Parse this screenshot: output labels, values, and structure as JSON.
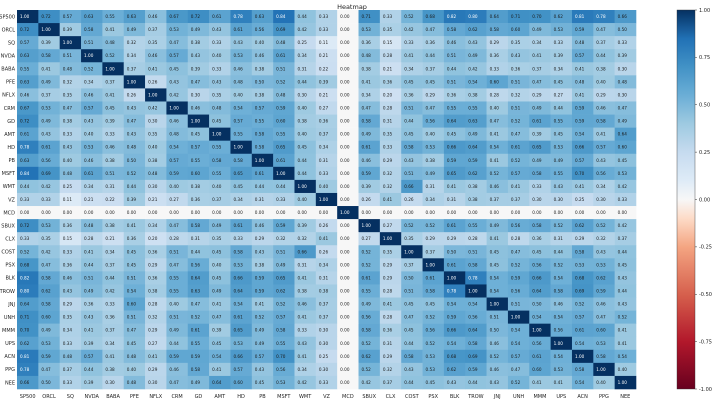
{
  "chart_data": {
    "type": "heatmap",
    "title": "Heatmap",
    "labels": [
      "SP500",
      "ORCL",
      "SQ",
      "NVDA",
      "BABA",
      "PFE",
      "NFLX",
      "CRM",
      "GD",
      "AMT",
      "HD",
      "PB",
      "MSFT",
      "WMT",
      "VZ",
      "MCD",
      "SBUX",
      "CLX",
      "COST",
      "PSX",
      "BLK",
      "TROW",
      "JNJ",
      "UNH",
      "MMM",
      "UPS",
      "ACN",
      "PPG",
      "NEE"
    ],
    "colorbar": {
      "min": -1.0,
      "max": 1.0,
      "ticks": [
        "1.00",
        "0.75",
        "0.50",
        "0.25",
        "0.00",
        "-0.25",
        "-0.50",
        "-0.75",
        "-1.00"
      ]
    },
    "values": [
      [
        1.0,
        0.72,
        0.57,
        0.63,
        0.55,
        0.63,
        0.46,
        0.67,
        0.72,
        0.61,
        0.78,
        0.63,
        0.84,
        0.44,
        0.33,
        0.0,
        0.71,
        0.33,
        0.52,
        0.68,
        0.82,
        0.8,
        0.64,
        0.71,
        0.7,
        0.62,
        0.81,
        0.78,
        0.66
      ],
      [
        0.72,
        1.0,
        0.39,
        0.58,
        0.41,
        0.49,
        0.37,
        0.53,
        0.49,
        0.43,
        0.61,
        0.56,
        0.69,
        0.42,
        0.33,
        0.0,
        0.53,
        0.35,
        0.42,
        0.47,
        0.58,
        0.62,
        0.58,
        0.6,
        0.49,
        0.53,
        0.59,
        0.47,
        0.5
      ],
      [
        0.57,
        0.39,
        1.0,
        0.51,
        0.48,
        0.32,
        0.35,
        0.47,
        0.38,
        0.33,
        0.43,
        0.4,
        0.48,
        0.25,
        0.11,
        0.0,
        0.36,
        0.15,
        0.33,
        0.36,
        0.46,
        0.43,
        0.29,
        0.35,
        0.34,
        0.33,
        0.48,
        0.37,
        0.33
      ],
      [
        0.63,
        0.58,
        0.51,
        1.0,
        0.52,
        0.34,
        0.46,
        0.57,
        0.43,
        0.4,
        0.53,
        0.46,
        0.61,
        0.34,
        0.21,
        0.0,
        0.48,
        0.28,
        0.41,
        0.44,
        0.51,
        0.49,
        0.36,
        0.43,
        0.41,
        0.39,
        0.57,
        0.44,
        0.39
      ],
      [
        0.55,
        0.41,
        0.48,
        0.52,
        1.0,
        0.37,
        0.41,
        0.45,
        0.39,
        0.33,
        0.46,
        0.38,
        0.51,
        0.31,
        0.22,
        0.0,
        0.38,
        0.21,
        0.34,
        0.37,
        0.44,
        0.42,
        0.33,
        0.36,
        0.37,
        0.34,
        0.41,
        0.38,
        0.3
      ],
      [
        0.63,
        0.49,
        0.32,
        0.34,
        0.37,
        1.0,
        0.26,
        0.43,
        0.47,
        0.43,
        0.48,
        0.5,
        0.52,
        0.44,
        0.39,
        0.0,
        0.41,
        0.36,
        0.45,
        0.45,
        0.51,
        0.54,
        0.6,
        0.51,
        0.47,
        0.45,
        0.48,
        0.4,
        0.48
      ],
      [
        0.46,
        0.37,
        0.35,
        0.46,
        0.41,
        0.26,
        1.0,
        0.42,
        0.3,
        0.35,
        0.4,
        0.38,
        0.48,
        0.3,
        0.21,
        0.0,
        0.34,
        0.2,
        0.36,
        0.29,
        0.36,
        0.38,
        0.28,
        0.32,
        0.29,
        0.27,
        0.41,
        0.29,
        0.3
      ],
      [
        0.67,
        0.53,
        0.47,
        0.57,
        0.45,
        0.43,
        0.42,
        1.0,
        0.46,
        0.48,
        0.54,
        0.57,
        0.59,
        0.4,
        0.27,
        0.0,
        0.47,
        0.28,
        0.51,
        0.47,
        0.55,
        0.55,
        0.4,
        0.51,
        0.49,
        0.44,
        0.59,
        0.46,
        0.47
      ],
      [
        0.72,
        0.49,
        0.38,
        0.43,
        0.39,
        0.47,
        0.3,
        0.46,
        1.0,
        0.45,
        0.57,
        0.55,
        0.6,
        0.38,
        0.36,
        0.0,
        0.58,
        0.31,
        0.44,
        0.56,
        0.64,
        0.63,
        0.47,
        0.52,
        0.61,
        0.55,
        0.59,
        0.58,
        0.49
      ],
      [
        0.61,
        0.43,
        0.33,
        0.4,
        0.33,
        0.43,
        0.35,
        0.48,
        0.45,
        1.0,
        0.55,
        0.58,
        0.55,
        0.4,
        0.37,
        0.0,
        0.49,
        0.35,
        0.45,
        0.4,
        0.45,
        0.49,
        0.41,
        0.47,
        0.39,
        0.45,
        0.54,
        0.41,
        0.64
      ],
      [
        0.78,
        0.61,
        0.43,
        0.53,
        0.46,
        0.48,
        0.4,
        0.54,
        0.57,
        0.55,
        1.0,
        0.58,
        0.65,
        0.45,
        0.34,
        0.0,
        0.61,
        0.33,
        0.58,
        0.53,
        0.66,
        0.64,
        0.54,
        0.61,
        0.65,
        0.53,
        0.66,
        0.57,
        0.6
      ],
      [
        0.63,
        0.56,
        0.4,
        0.46,
        0.38,
        0.5,
        0.38,
        0.57,
        0.55,
        0.58,
        0.58,
        1.0,
        0.61,
        0.44,
        0.31,
        0.0,
        0.46,
        0.29,
        0.43,
        0.38,
        0.59,
        0.59,
        0.41,
        0.52,
        0.49,
        0.49,
        0.57,
        0.43,
        0.45
      ],
      [
        0.84,
        0.69,
        0.48,
        0.61,
        0.51,
        0.52,
        0.48,
        0.59,
        0.6,
        0.55,
        0.65,
        0.61,
        1.0,
        0.44,
        0.33,
        0.0,
        0.59,
        0.32,
        0.51,
        0.49,
        0.65,
        0.62,
        0.52,
        0.57,
        0.58,
        0.55,
        0.7,
        0.56,
        0.53
      ],
      [
        0.44,
        0.42,
        0.25,
        0.34,
        0.31,
        0.44,
        0.3,
        0.4,
        0.38,
        0.4,
        0.45,
        0.44,
        0.44,
        1.0,
        0.4,
        0.0,
        0.39,
        0.32,
        0.66,
        0.31,
        0.41,
        0.38,
        0.46,
        0.41,
        0.33,
        0.43,
        0.41,
        0.34,
        0.42
      ],
      [
        0.33,
        0.33,
        0.11,
        0.21,
        0.22,
        0.39,
        0.21,
        0.27,
        0.36,
        0.37,
        0.34,
        0.31,
        0.33,
        0.4,
        1.0,
        0.0,
        0.26,
        0.41,
        0.26,
        0.34,
        0.31,
        0.38,
        0.37,
        0.37,
        0.3,
        0.3,
        0.25,
        0.3,
        0.33
      ],
      [
        0.0,
        0.0,
        0.0,
        0.0,
        0.0,
        0.0,
        0.0,
        0.0,
        0.0,
        0.0,
        0.0,
        0.0,
        0.0,
        0.0,
        0.0,
        1.0,
        0.0,
        0.0,
        0.0,
        0.0,
        0.0,
        0.0,
        0.0,
        0.0,
        0.0,
        0.0,
        0.0,
        0.0,
        0.0
      ],
      [
        0.72,
        0.53,
        0.36,
        0.48,
        0.38,
        0.41,
        0.34,
        0.47,
        0.58,
        0.49,
        0.61,
        0.46,
        0.59,
        0.39,
        0.26,
        0.0,
        1.0,
        0.27,
        0.52,
        0.52,
        0.61,
        0.55,
        0.49,
        0.56,
        0.58,
        0.52,
        0.62,
        0.52,
        0.42
      ],
      [
        0.33,
        0.35,
        0.15,
        0.28,
        0.21,
        0.36,
        0.2,
        0.28,
        0.31,
        0.35,
        0.33,
        0.29,
        0.32,
        0.32,
        0.41,
        0.0,
        0.27,
        1.0,
        0.35,
        0.29,
        0.29,
        0.28,
        0.41,
        0.28,
        0.36,
        0.31,
        0.29,
        0.32,
        0.37
      ],
      [
        0.52,
        0.42,
        0.33,
        0.41,
        0.34,
        0.45,
        0.36,
        0.51,
        0.44,
        0.45,
        0.58,
        0.43,
        0.51,
        0.66,
        0.26,
        0.0,
        0.52,
        0.35,
        1.0,
        0.37,
        0.5,
        0.51,
        0.45,
        0.47,
        0.45,
        0.44,
        0.58,
        0.43,
        0.44
      ],
      [
        0.68,
        0.47,
        0.36,
        0.44,
        0.37,
        0.45,
        0.29,
        0.47,
        0.56,
        0.4,
        0.53,
        0.38,
        0.49,
        0.31,
        0.34,
        0.0,
        0.52,
        0.29,
        0.37,
        1.0,
        0.61,
        0.58,
        0.45,
        0.52,
        0.56,
        0.52,
        0.53,
        0.53,
        0.45
      ],
      [
        0.82,
        0.58,
        0.46,
        0.51,
        0.44,
        0.51,
        0.36,
        0.55,
        0.64,
        0.45,
        0.66,
        0.59,
        0.65,
        0.41,
        0.31,
        0.0,
        0.61,
        0.29,
        0.5,
        0.61,
        1.0,
        0.78,
        0.54,
        0.59,
        0.66,
        0.54,
        0.68,
        0.62,
        0.43
      ],
      [
        0.8,
        0.62,
        0.43,
        0.49,
        0.42,
        0.54,
        0.38,
        0.55,
        0.63,
        0.49,
        0.64,
        0.59,
        0.62,
        0.38,
        0.38,
        0.0,
        0.55,
        0.28,
        0.51,
        0.58,
        0.78,
        1.0,
        0.54,
        0.56,
        0.64,
        0.58,
        0.69,
        0.59,
        0.44
      ],
      [
        0.64,
        0.58,
        0.29,
        0.36,
        0.33,
        0.6,
        0.28,
        0.4,
        0.47,
        0.41,
        0.54,
        0.41,
        0.52,
        0.46,
        0.37,
        0.0,
        0.49,
        0.41,
        0.45,
        0.45,
        0.54,
        0.54,
        1.0,
        0.51,
        0.5,
        0.46,
        0.52,
        0.46,
        0.43
      ],
      [
        0.71,
        0.6,
        0.35,
        0.43,
        0.36,
        0.51,
        0.32,
        0.51,
        0.52,
        0.47,
        0.61,
        0.52,
        0.57,
        0.41,
        0.37,
        0.0,
        0.56,
        0.28,
        0.47,
        0.52,
        0.59,
        0.56,
        0.51,
        1.0,
        0.54,
        0.54,
        0.57,
        0.47,
        0.52
      ],
      [
        0.7,
        0.49,
        0.34,
        0.41,
        0.37,
        0.47,
        0.29,
        0.49,
        0.61,
        0.39,
        0.65,
        0.49,
        0.58,
        0.33,
        0.3,
        0.0,
        0.58,
        0.36,
        0.45,
        0.56,
        0.66,
        0.64,
        0.5,
        0.54,
        1.0,
        0.56,
        0.61,
        0.6,
        0.41
      ],
      [
        0.62,
        0.53,
        0.33,
        0.39,
        0.34,
        0.45,
        0.27,
        0.44,
        0.55,
        0.45,
        0.53,
        0.49,
        0.55,
        0.43,
        0.3,
        0.0,
        0.52,
        0.31,
        0.44,
        0.52,
        0.54,
        0.58,
        0.46,
        0.54,
        0.56,
        1.0,
        0.54,
        0.53,
        0.41
      ],
      [
        0.81,
        0.59,
        0.48,
        0.57,
        0.41,
        0.48,
        0.41,
        0.59,
        0.59,
        0.54,
        0.66,
        0.57,
        0.7,
        0.41,
        0.25,
        0.0,
        0.62,
        0.29,
        0.58,
        0.53,
        0.68,
        0.69,
        0.52,
        0.57,
        0.61,
        0.54,
        1.0,
        0.58,
        0.54
      ],
      [
        0.78,
        0.47,
        0.37,
        0.44,
        0.38,
        0.4,
        0.29,
        0.46,
        0.58,
        0.41,
        0.57,
        0.43,
        0.56,
        0.34,
        0.3,
        0.0,
        0.52,
        0.32,
        0.43,
        0.53,
        0.62,
        0.59,
        0.46,
        0.47,
        0.6,
        0.53,
        0.58,
        1.0,
        0.4
      ],
      [
        0.66,
        0.5,
        0.33,
        0.39,
        0.3,
        0.48,
        0.3,
        0.47,
        0.49,
        0.64,
        0.6,
        0.45,
        0.53,
        0.42,
        0.33,
        0.0,
        0.42,
        0.37,
        0.44,
        0.45,
        0.43,
        0.44,
        0.43,
        0.52,
        0.41,
        0.41,
        0.54,
        0.4,
        1.0
      ]
    ]
  }
}
